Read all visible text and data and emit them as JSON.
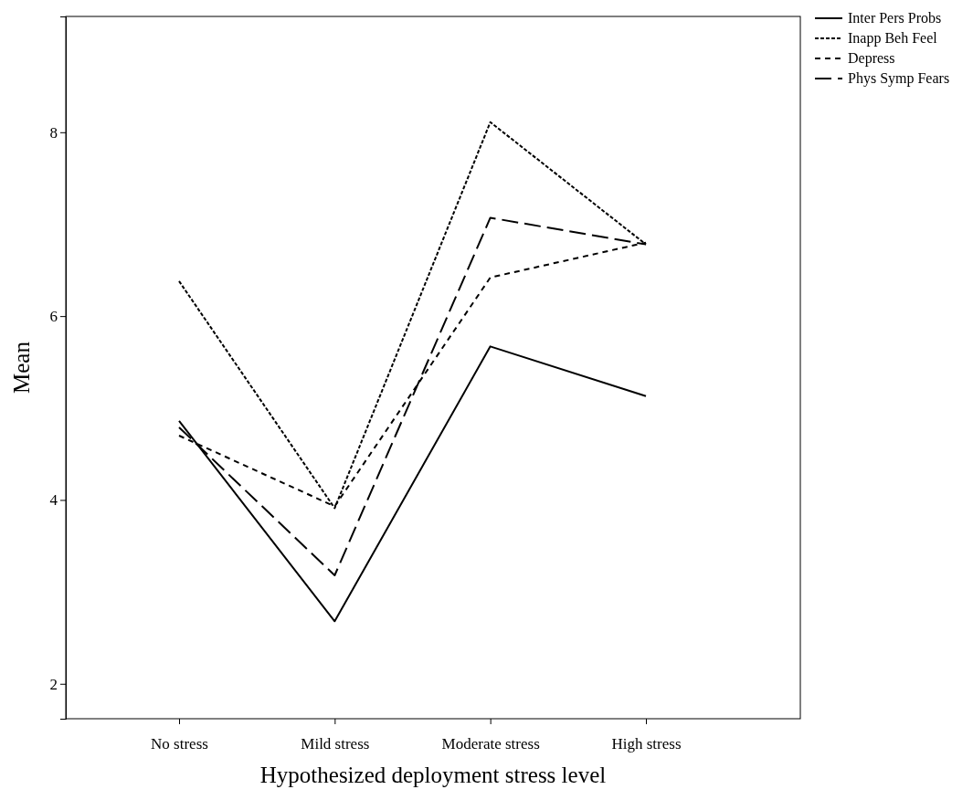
{
  "chart_data": {
    "type": "line",
    "xlabel": "Hypothesized deployment stress level",
    "ylabel": "Mean",
    "categories": [
      "No stress",
      "Mild stress",
      "Moderate stress",
      "High stress"
    ],
    "ylim": [
      1.62,
      9.26
    ],
    "yticks": [
      2,
      4,
      6,
      8
    ],
    "grid": false,
    "legend": "top right",
    "marker": "none",
    "series": [
      {
        "name": "Inter Pers Probs",
        "color": "#000000",
        "line_style": "solid",
        "values": [
          4.86,
          2.68,
          5.67,
          5.13
        ]
      },
      {
        "name": "Inapp Beh Feel",
        "color": "#000000",
        "line_style": "dotted",
        "values": [
          6.38,
          3.91,
          8.11,
          6.78
        ]
      },
      {
        "name": "Depress",
        "color": "#000000",
        "line_style": "dashed",
        "values": [
          4.7,
          3.93,
          6.42,
          6.8
        ]
      },
      {
        "name": "Phys Symp Fears",
        "color": "#000000",
        "line_style": "longdash",
        "values": [
          4.79,
          3.18,
          7.07,
          6.78
        ]
      }
    ]
  }
}
